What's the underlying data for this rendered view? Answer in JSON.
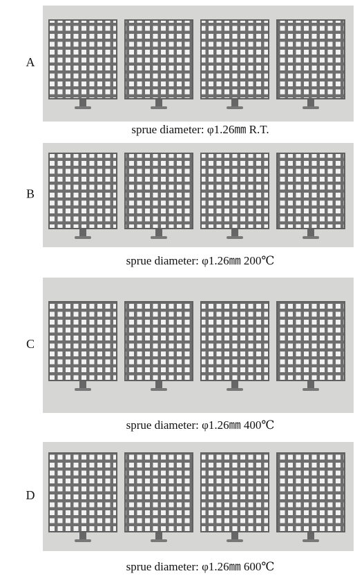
{
  "panels": [
    {
      "label": "A",
      "caption": "sprue diameter: φ1.26㎜ R.T."
    },
    {
      "label": "B",
      "caption": "sprue diameter: φ1.26㎜ 200℃"
    },
    {
      "label": "C",
      "caption": "sprue diameter: φ1.26㎜ 400℃"
    },
    {
      "label": "D",
      "caption": "sprue diameter: φ1.26㎜ 600℃"
    }
  ]
}
